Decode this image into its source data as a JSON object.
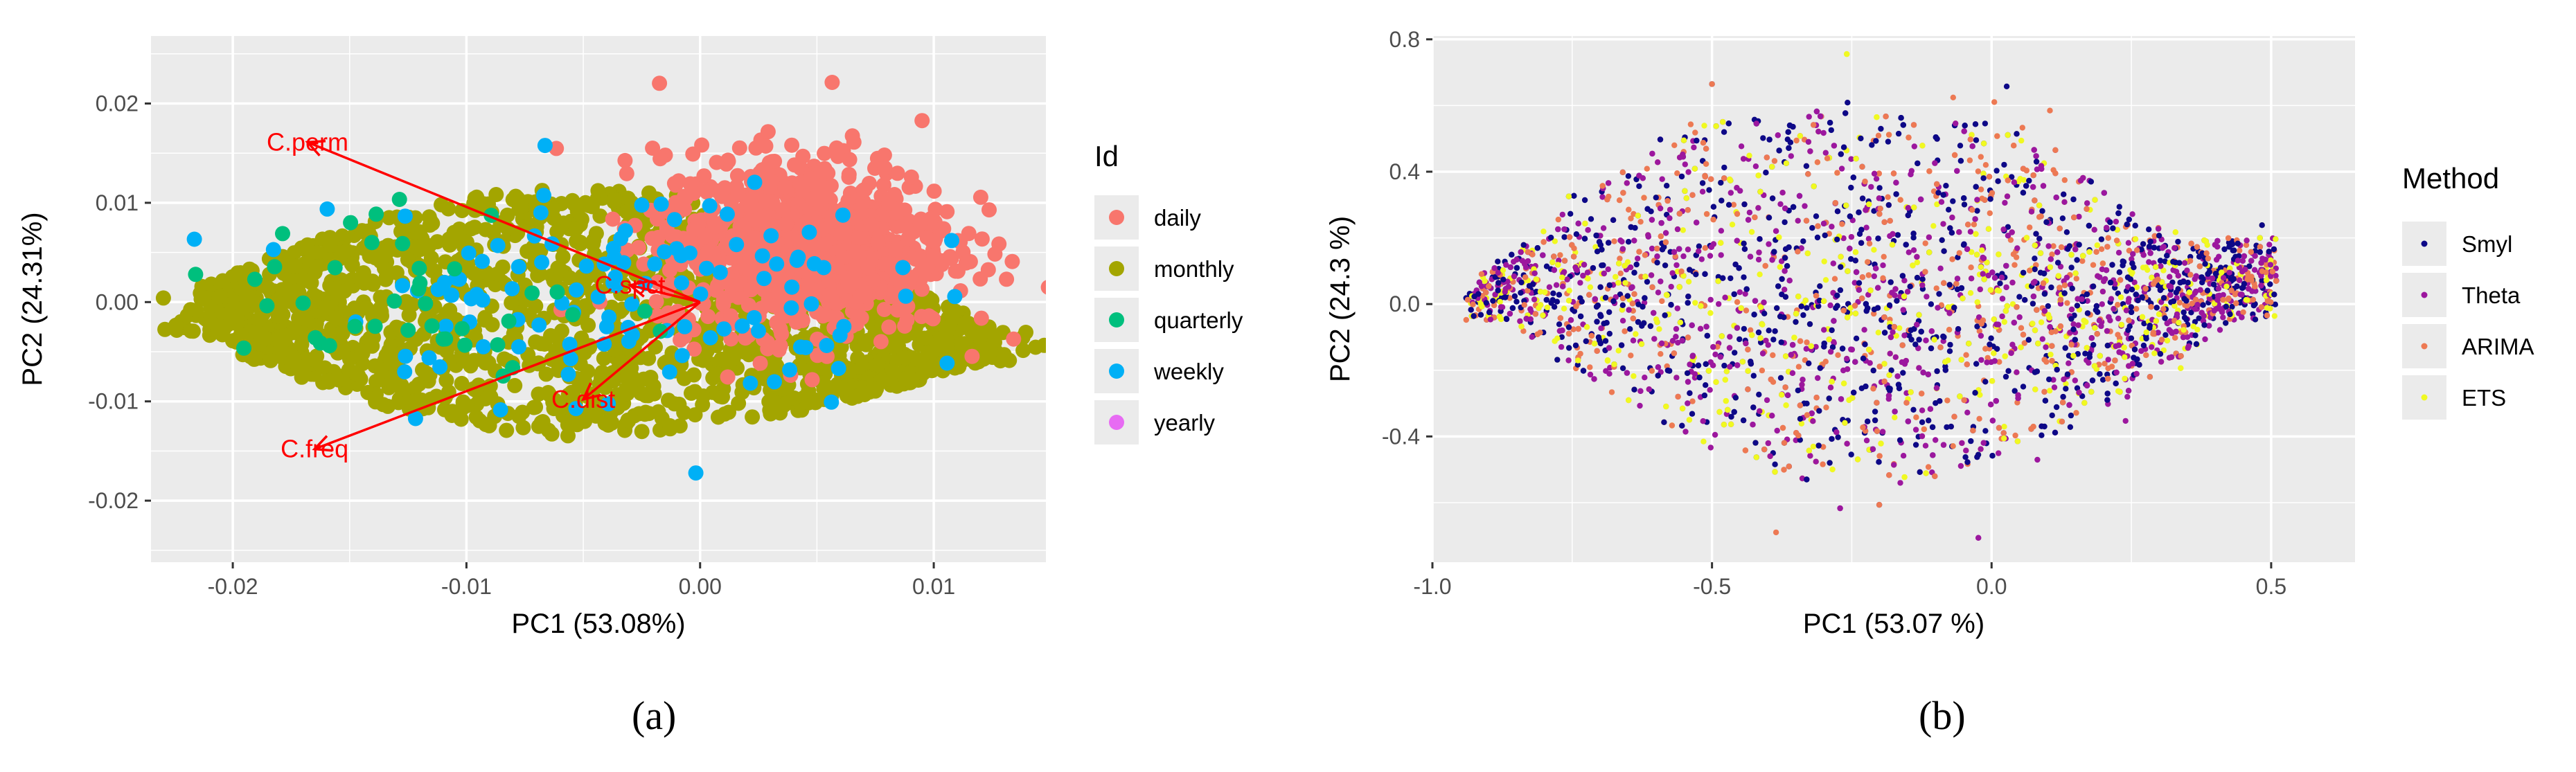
{
  "captions": {
    "a": "(a)",
    "b": "(b)"
  },
  "chart_data": [
    {
      "type": "scatter",
      "panel": "a",
      "title": "",
      "xlabel": "PC1 (53.08%)",
      "ylabel": "PC2 (24.31%)",
      "xlim": [
        -0.0235,
        0.0148
      ],
      "ylim": [
        -0.0262,
        0.0268
      ],
      "x_ticks": [
        -0.02,
        -0.01,
        0.0,
        0.01
      ],
      "x_tick_labels": [
        "-0.02",
        "-0.01",
        "0.00",
        "0.01"
      ],
      "y_ticks": [
        -0.02,
        -0.01,
        0.0,
        0.01,
        0.02
      ],
      "y_tick_labels": [
        "-0.02",
        "-0.01",
        "0.00",
        "0.01",
        "0.02"
      ],
      "grid": true,
      "legend_title": "Id",
      "legend_position": "right",
      "series": [
        {
          "name": "daily",
          "color": "#F8766D",
          "cx": 0.0045,
          "cy": 0.006,
          "sx": 0.0035,
          "sy": 0.0075,
          "n": 900
        },
        {
          "name": "monthly",
          "color": "#A3A500",
          "cx": -0.0045,
          "cy": -0.002,
          "sx": 0.0062,
          "sy": 0.008,
          "n": 1600
        },
        {
          "name": "quarterly",
          "color": "#00BF7D",
          "cx": -0.012,
          "cy": 0.0,
          "sx": 0.004,
          "sy": 0.005,
          "n": 40
        },
        {
          "name": "weekly",
          "color": "#00B0F6",
          "cx": -0.004,
          "cy": 0.001,
          "sx": 0.006,
          "sy": 0.006,
          "n": 120
        },
        {
          "name": "yearly",
          "color": "#E76BF3",
          "cx": -0.008,
          "cy": 0.0,
          "sx": 0.005,
          "sy": 0.005,
          "n": 0
        }
      ],
      "arrows": [
        {
          "label": "C.perm",
          "x": -0.0168,
          "y": 0.0161
        },
        {
          "label": "C.spct",
          "x": -0.003,
          "y": 0.0017
        },
        {
          "label": "C.dist",
          "x": -0.005,
          "y": -0.0098
        },
        {
          "label": "C.freq",
          "x": -0.0165,
          "y": -0.0148
        }
      ],
      "arrow_color": "#FF0000"
    },
    {
      "type": "scatter",
      "panel": "b",
      "title": "",
      "xlabel": "PC1 (53.07 %)",
      "ylabel": "PC2 (24.3 %)",
      "xlim": [
        -1.0,
        0.65
      ],
      "ylim": [
        -0.78,
        0.81
      ],
      "x_ticks": [
        -1.0,
        -0.5,
        0.0,
        0.5
      ],
      "x_tick_labels": [
        "-1.0",
        "-0.5",
        "0.0",
        "0.5"
      ],
      "y_ticks": [
        -0.4,
        0.0,
        0.4,
        0.8
      ],
      "y_tick_labels": [
        "-0.4",
        "0.0",
        "0.4",
        "0.8"
      ],
      "grid": true,
      "legend_title": "Method",
      "legend_position": "right",
      "series": [
        {
          "name": "Smyl",
          "color": "#0D0887",
          "n": 1300
        },
        {
          "name": "Theta",
          "color": "#9C179E",
          "n": 1300
        },
        {
          "name": "ARIMA",
          "color": "#ED7953",
          "n": 900
        },
        {
          "name": "ETS",
          "color": "#F0F921",
          "n": 700
        }
      ]
    }
  ]
}
